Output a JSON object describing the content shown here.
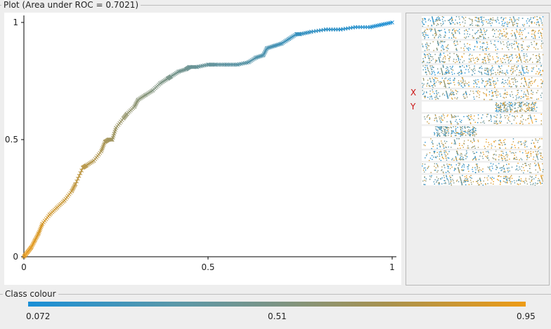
{
  "plot_panel": {
    "title": "Plot (Area under ROC = 0.7021)"
  },
  "colour_panel": {
    "title": "Class colour",
    "min_label": "0.072",
    "mid_label": "0.51",
    "max_label": "0.95"
  },
  "side_panel": {
    "x_marker": "X",
    "y_marker": "Y"
  },
  "colors": {
    "low": "#1a8fd6",
    "mid": "#7c9485",
    "high": "#ee9b16",
    "marker_label": "#cc1111"
  },
  "chart_data": {
    "type": "line",
    "title": "Plot (Area under ROC = 0.7021)",
    "xlim": [
      0,
      1
    ],
    "ylim": [
      0,
      1
    ],
    "x_ticks": [
      "0",
      "0.5",
      "1"
    ],
    "y_ticks": [
      "0",
      "0.5",
      "1"
    ],
    "marker": "x",
    "x": [
      0,
      0.01,
      0.02,
      0.03,
      0.04,
      0.05,
      0.07,
      0.09,
      0.11,
      0.13,
      0.14,
      0.16,
      0.17,
      0.19,
      0.21,
      0.22,
      0.23,
      0.24,
      0.25,
      0.27,
      0.28,
      0.3,
      0.31,
      0.33,
      0.35,
      0.37,
      0.39,
      0.4,
      0.42,
      0.44,
      0.45,
      0.47,
      0.5,
      0.52,
      0.55,
      0.58,
      0.61,
      0.63,
      0.65,
      0.66,
      0.68,
      0.7,
      0.72,
      0.74,
      0.75,
      0.78,
      0.82,
      0.86,
      0.9,
      0.94,
      0.97,
      1.0
    ],
    "y": [
      0,
      0.02,
      0.04,
      0.07,
      0.1,
      0.14,
      0.18,
      0.21,
      0.24,
      0.28,
      0.31,
      0.38,
      0.39,
      0.41,
      0.45,
      0.49,
      0.5,
      0.5,
      0.55,
      0.59,
      0.61,
      0.64,
      0.67,
      0.69,
      0.71,
      0.74,
      0.76,
      0.77,
      0.79,
      0.8,
      0.81,
      0.81,
      0.82,
      0.82,
      0.82,
      0.82,
      0.83,
      0.85,
      0.86,
      0.89,
      0.9,
      0.91,
      0.93,
      0.95,
      0.95,
      0.96,
      0.97,
      0.97,
      0.98,
      0.98,
      0.99,
      1.0
    ],
    "grid": false
  },
  "side_rows": [
    {
      "label": "",
      "density": 0.95,
      "start": 0.0,
      "end": 1.0,
      "color_bias": 0.4
    },
    {
      "label": "",
      "density": 0.85,
      "start": 0.0,
      "end": 1.0,
      "color_bias": 0.55
    },
    {
      "label": "",
      "density": 0.65,
      "start": 0.0,
      "end": 1.0,
      "color_bias": 0.45
    },
    {
      "label": "",
      "density": 0.85,
      "start": 0.0,
      "end": 1.0,
      "color_bias": 0.6
    },
    {
      "label": "",
      "density": 0.95,
      "start": 0.0,
      "end": 1.0,
      "color_bias": 0.35
    },
    {
      "label": "",
      "density": 0.85,
      "start": 0.0,
      "end": 1.0,
      "color_bias": 0.55
    },
    {
      "label": "",
      "density": 0.75,
      "start": 0.0,
      "end": 1.0,
      "color_bias": 0.55
    },
    {
      "label": "",
      "density": 0.75,
      "start": 0.6,
      "end": 0.95,
      "color_bias": 0.45
    },
    {
      "label": "",
      "density": 0.65,
      "start": 0.0,
      "end": 1.0,
      "color_bias": 0.55
    },
    {
      "label": "",
      "density": 0.7,
      "start": 0.1,
      "end": 0.45,
      "color_bias": 0.45
    },
    {
      "label": "",
      "density": 0.55,
      "start": 0.0,
      "end": 1.0,
      "color_bias": 0.65
    },
    {
      "label": "",
      "density": 0.8,
      "start": 0.0,
      "end": 1.0,
      "color_bias": 0.55
    },
    {
      "label": "",
      "density": 0.7,
      "start": 0.0,
      "end": 1.0,
      "color_bias": 0.45
    },
    {
      "label": "",
      "density": 0.9,
      "start": 0.0,
      "end": 1.0,
      "color_bias": 0.55
    }
  ]
}
